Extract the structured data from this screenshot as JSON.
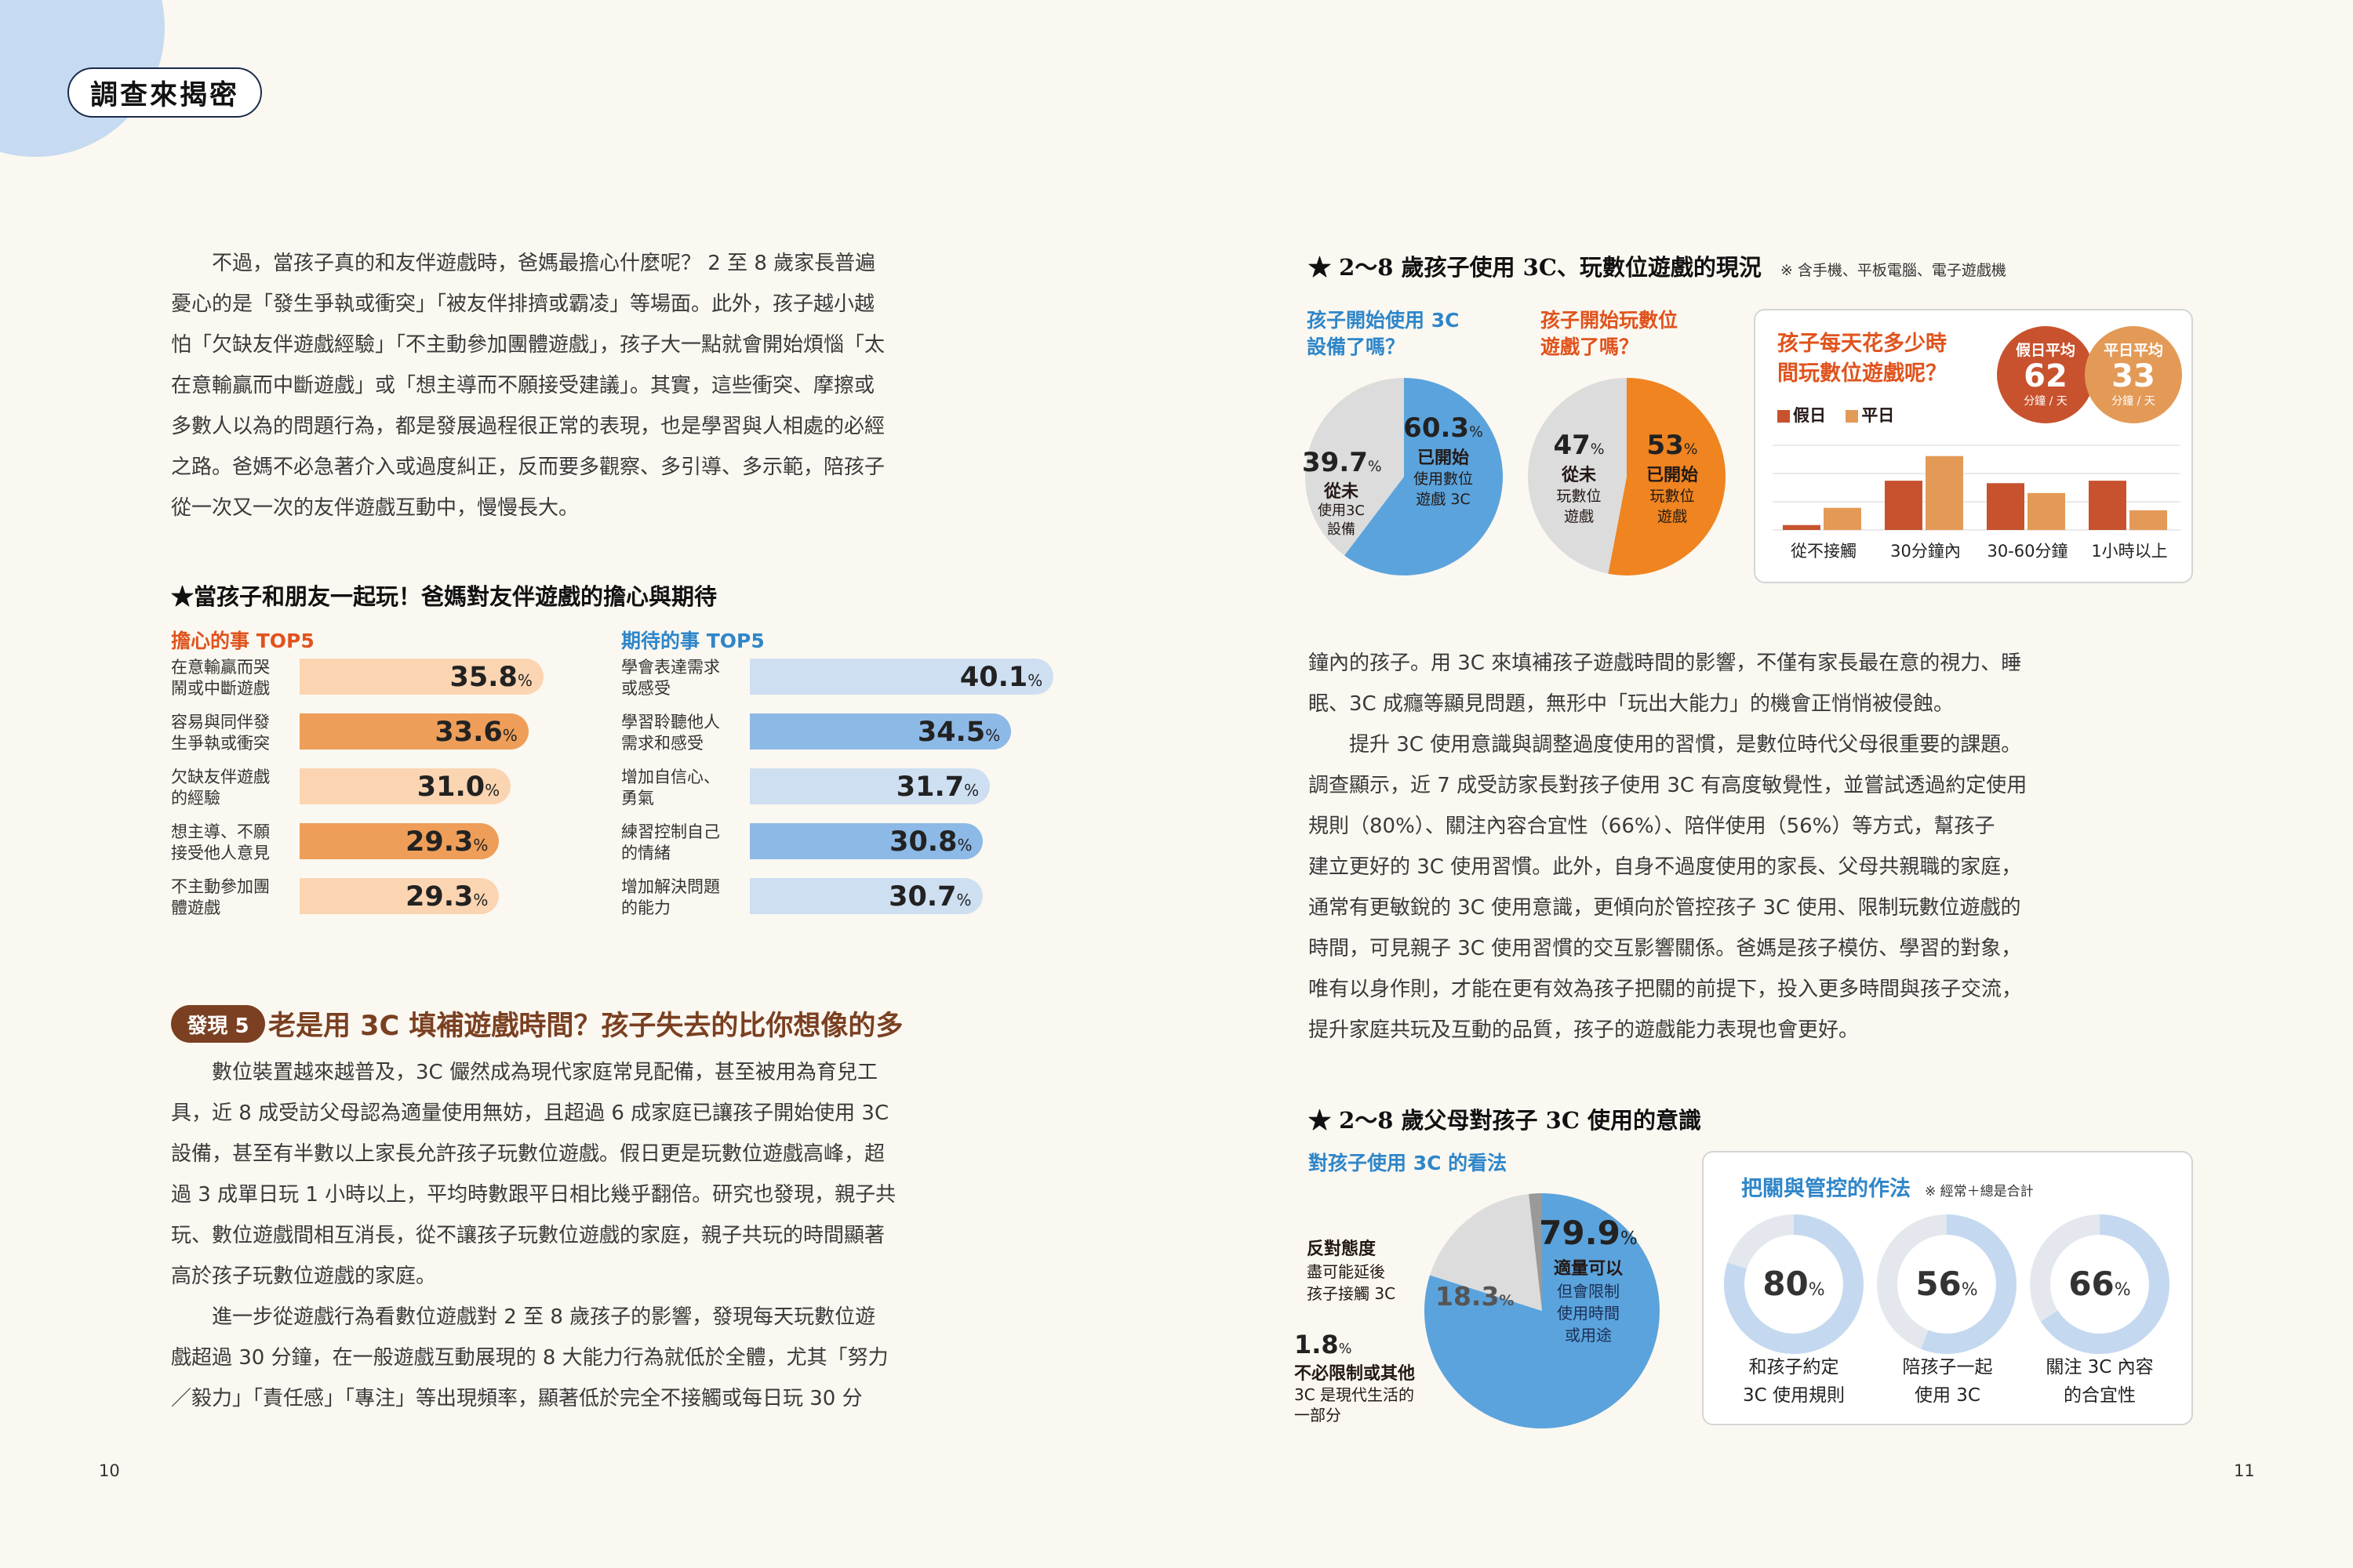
{
  "header": {
    "badge": "調查來揭密"
  },
  "left": {
    "intro": [
      "不過，當孩子真的和友伴遊戲時，爸媽最擔心什麼呢？ 2 至 8 歲家長普遍",
      "憂心的是「發生爭執或衝突」「被友伴排擠或霸凌」等場面。此外，孩子越小越",
      "怕「欠缺友伴遊戲經驗」「不主動參加團體遊戲」，孩子大一點就會開始煩惱「太",
      "在意輸贏而中斷遊戲」或「想主導而不願接受建議」。其實，這些衝突、摩擦或",
      "多數人以為的問題行為，都是發展過程很正常的表現，也是學習與人相處的必經",
      "之路。爸媽不必急著介入或過度糾正，反而要多觀察、多引導、多示範，陪孩子",
      "從一次又一次的友伴遊戲互動中，慢慢長大。"
    ],
    "chart_title": "★當孩子和朋友一起玩！爸媽對友伴遊戲的擔心與期待",
    "worry_title": "擔心的事 TOP5",
    "hope_title": "期待的事 TOP5",
    "finding_badge": "發現 5",
    "finding_title": "老是用 3C 填補遊戲時間？孩子失去的比你想像的多",
    "body_p1": [
      "數位裝置越來越普及，3C 儼然成為現代家庭常見配備，甚至被用為育兒工",
      "具，近 8 成受訪父母認為適量使用無妨，且超過 6 成家庭已讓孩子開始使用 3C",
      "設備，甚至有半數以上家長允許孩子玩數位遊戲。假日更是玩數位遊戲高峰，超",
      "過 3 成單日玩 1 小時以上，平均時數跟平日相比幾乎翻倍。研究也發現，親子共",
      "玩、數位遊戲間相互消長，從不讓孩子玩數位遊戲的家庭，親子共玩的時間顯著",
      "高於孩子玩數位遊戲的家庭。"
    ],
    "body_p2": [
      "進一步從遊戲行為看數位遊戲對 2 至 8 歲孩子的影響，發現每天玩數位遊",
      "戲超過 30 分鐘，在一般遊戲互動展現的 8 大能力行為就低於全體，尤其「努力",
      "／毅力」「責任感」「專注」等出現頻率，顯著低於完全不接觸或每日玩 30 分"
    ],
    "page": "10"
  },
  "right": {
    "title1": "★ 2～8 歲孩子使用 3C、玩數位遊戲的現況",
    "note1": "※ 含手機、平板電腦、電子遊戲機",
    "q1": [
      "孩子開始使用 3C",
      "設備了嗎？"
    ],
    "q2": [
      "孩子開始玩數位",
      "遊戲了嗎？"
    ],
    "pie1": {
      "yes_val": "60.3",
      "yes_label": "已開始",
      "yes_sub": [
        "使用數位",
        "遊戲 3C"
      ],
      "no_val": "39.7",
      "no_label": "從未",
      "no_sub": [
        "使用3C",
        "設備"
      ]
    },
    "pie2": {
      "yes_val": "53",
      "yes_label": "已開始",
      "yes_sub": [
        "玩數位",
        "遊戲"
      ],
      "no_val": "47",
      "no_label": "從未",
      "no_sub": [
        "玩數位",
        "遊戲"
      ]
    },
    "q3": [
      "孩子每天花多少時",
      "間玩數位遊戲呢？"
    ],
    "avg_holiday": {
      "title": "假日平均",
      "value": "62",
      "unit": "分鐘 / 天"
    },
    "avg_weekday": {
      "title": "平日平均",
      "value": "33",
      "unit": "分鐘 / 天"
    },
    "legend": [
      "假日",
      "平日"
    ],
    "body": [
      "鐘內的孩子。用 3C 來填補孩子遊戲時間的影響，不僅有家長最在意的視力、睡",
      "眠、3C 成癮等顯見問題，無形中「玩出大能力」的機會正悄悄被侵蝕。",
      "提升 3C 使用意識與調整過度使用的習慣，是數位時代父母很重要的課題。",
      "調查顯示，近 7 成受訪家長對孩子使用 3C 有高度敏覺性，並嘗試透過約定使用",
      "規則（80%）、關注內容合宜性（66%）、陪伴使用（56%）等方式，幫孩子",
      "建立更好的 3C 使用習慣。此外，自身不過度使用的家長、父母共親職的家庭，",
      "通常有更敏銳的 3C 使用意識，更傾向於管控孩子 3C 使用、限制玩數位遊戲的",
      "時間，可見親子 3C 使用習慣的交互影響關係。爸媽是孩子模仿、學習的對象，",
      "唯有以身作則，才能在更有效為孩子把關的前提下，投入更多時間與孩子交流，",
      "提升家庭共玩及互動的品質，孩子的遊戲能力表現也會更好。"
    ],
    "title2": "★ 2～8 歲父母對孩子 3C 使用的意識",
    "q4": "對孩子使用 3C 的看法",
    "pie3": {
      "big_val": "79.9",
      "big_label": "適量可以",
      "big_sub": [
        "但會限制",
        "使用時間",
        "或用途"
      ],
      "mid_val": "18.3",
      "mid_label": "反對態度",
      "mid_sub": [
        "盡可能延後",
        "孩子接觸 3C"
      ],
      "small_val": "1.8",
      "small_label": "不必限制或其他",
      "small_sub": [
        "3C 是現代生活的",
        "一部分"
      ]
    },
    "q5": "把關與管控的作法",
    "note5": "※ 經常＋總是合計",
    "rings": [
      {
        "value": "80",
        "label": [
          "和孩子約定",
          "3C 使用規則"
        ]
      },
      {
        "value": "56",
        "label": [
          "陪孩子一起",
          "使用 3C"
        ]
      },
      {
        "value": "66",
        "label": [
          "關注 3C 內容",
          "的合宜性"
        ]
      }
    ],
    "page": "11"
  },
  "chart_data": [
    {
      "type": "bar",
      "title": "擔心的事 TOP5",
      "unit": "%",
      "categories": [
        [
          "在意輸贏而哭",
          "鬧或中斷遊戲"
        ],
        [
          "容易與同伴發",
          "生爭執或衝突"
        ],
        [
          "欠缺友伴遊戲",
          "的經驗"
        ],
        [
          "想主導、不願",
          "接受他人意見"
        ],
        [
          "不主動參加團",
          "體遊戲"
        ]
      ],
      "values": [
        35.8,
        33.6,
        31.0,
        29.3,
        29.3
      ],
      "xlim": [
        0,
        41
      ]
    },
    {
      "type": "bar",
      "title": "期待的事 TOP5",
      "unit": "%",
      "categories": [
        [
          "學會表達需求",
          "或感受"
        ],
        [
          "學習聆聽他人",
          "需求和感受"
        ],
        [
          "增加自信心、",
          "勇氣"
        ],
        [
          "練習控制自己",
          "的情緒"
        ],
        [
          "增加解決問題",
          "的能力"
        ]
      ],
      "values": [
        40.1,
        34.5,
        31.7,
        30.8,
        30.7
      ],
      "xlim": [
        0,
        41
      ]
    },
    {
      "type": "bar",
      "title": "孩子每天花多少時間玩數位遊戲呢？",
      "categories": [
        "從不接觸",
        "30分鐘內",
        "30-60分鐘",
        "1小時以上"
      ],
      "series": [
        {
          "name": "假日",
          "values": [
            2,
            20,
            19,
            20
          ]
        },
        {
          "name": "平日",
          "values": [
            9,
            30,
            15,
            8
          ]
        }
      ],
      "ylim": [
        0,
        35
      ]
    },
    {
      "type": "pie",
      "title": "孩子開始使用 3C 設備了嗎？",
      "values": [
        60.3,
        39.7
      ],
      "labels": [
        "已開始",
        "從未"
      ]
    },
    {
      "type": "pie",
      "title": "孩子開始玩數位遊戲了嗎？",
      "values": [
        53,
        47
      ],
      "labels": [
        "已開始",
        "從未"
      ]
    },
    {
      "type": "pie",
      "title": "對孩子使用 3C 的看法",
      "values": [
        79.9,
        18.3,
        1.8
      ],
      "labels": [
        "適量可以",
        "反對態度",
        "不必限制或其他"
      ]
    }
  ],
  "colors": {
    "orange_dark": "#ee9e59",
    "orange_light": "#fbd5b2",
    "blue_dark": "#8db9e6",
    "blue_light": "#cfdff2",
    "pie_blue": "#5ba3dc",
    "pie_orange": "#ef8420",
    "pie_gray": "#dcdcdc",
    "holiday": "#c8522e",
    "weekday": "#e39a57"
  }
}
